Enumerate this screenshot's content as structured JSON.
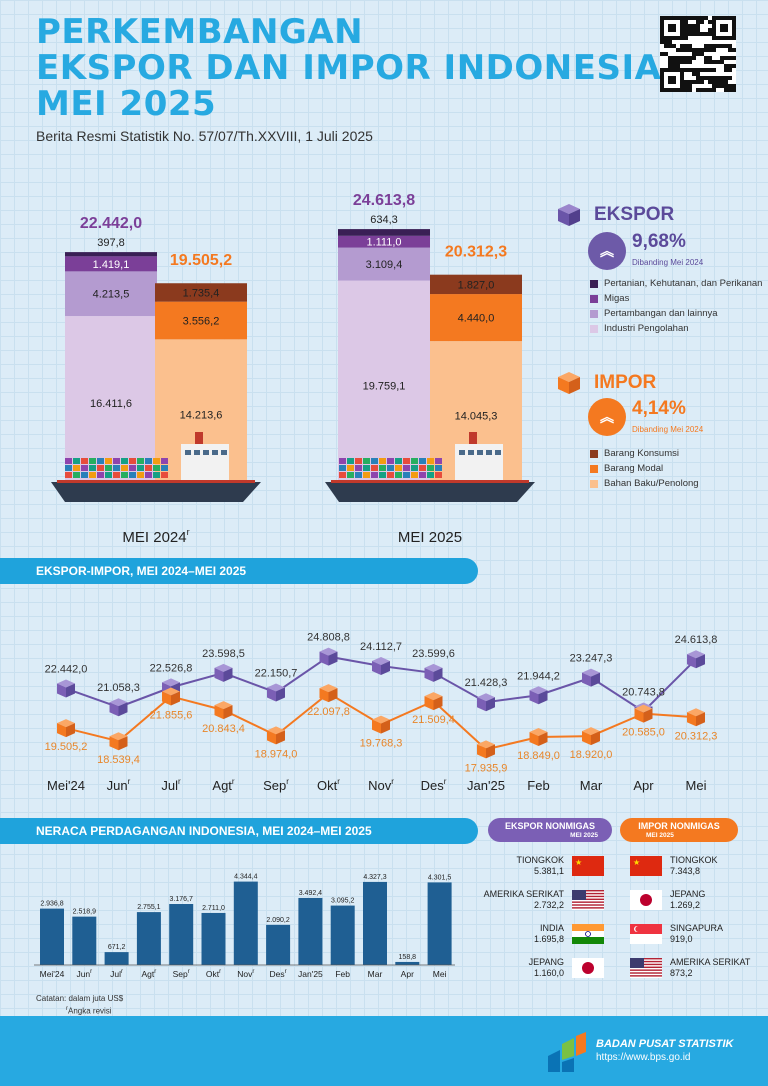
{
  "header": {
    "title_lines": [
      "PERKEMBANGAN",
      "EKSPOR DAN IMPOR INDONESIA",
      "MEI 2025"
    ],
    "subtitle": "Berita Resmi Statistik No. 57/07/Th.XXVIII, 1 Juli 2025"
  },
  "colors": {
    "accent": "#27a9e1",
    "ekspor": "#7b5fb5",
    "impor": "#f47920",
    "bar_blue": "#1f5f93",
    "pertanian": "#3a1f55",
    "migas": "#7b3f98",
    "pertambangan": "#b49bd0",
    "industri": "#dcc8e6",
    "konsumsi": "#8b3a1e",
    "modal": "#f47920",
    "bahan_baku": "#fbc08e"
  },
  "icons": [
    "qr-code-icon",
    "cube-icon",
    "chevrons-up-icon",
    "ship-icon",
    "flag-icon",
    "bps-logo-icon"
  ],
  "chart_data": [
    {
      "type": "bar",
      "stacked": true,
      "categories": [
        "MEI 2024",
        "MEI 2025"
      ],
      "category_superscripts": [
        "r",
        ""
      ],
      "ekspor": {
        "total_labels": [
          "22.442,0",
          "24.613,8"
        ],
        "total": [
          22442.0,
          24613.8
        ],
        "components": [
          {
            "name": "Industri Pengolahan",
            "values": [
              16411.6,
              19759.1
            ],
            "labels": [
              "16.411,6",
              "19.759,1"
            ]
          },
          {
            "name": "Pertambangan dan lainnya",
            "values": [
              4213.5,
              3109.4
            ],
            "labels": [
              "4.213,5",
              "3.109,4"
            ]
          },
          {
            "name": "Migas",
            "values": [
              1419.1,
              1111.0
            ],
            "labels": [
              "1.419,1",
              "1.111,0"
            ]
          },
          {
            "name": "Pertanian, Kehutanan, dan Perikanan",
            "values": [
              397.8,
              634.3
            ],
            "labels": [
              "397,8",
              "634,3"
            ]
          }
        ]
      },
      "impor": {
        "total_labels": [
          "19.505,2",
          "20.312,3"
        ],
        "total": [
          19505.2,
          20312.3
        ],
        "components": [
          {
            "name": "Bahan Baku/Penolong",
            "values": [
              14213.6,
              14045.3
            ],
            "labels": [
              "14.213,6",
              "14.045,3"
            ]
          },
          {
            "name": "Barang Modal",
            "values": [
              3556.2,
              4440.0
            ],
            "labels": [
              "3.556,2",
              "4.440,0"
            ]
          },
          {
            "name": "Barang Konsumsi",
            "values": [
              1735.4,
              1827.0
            ],
            "labels": [
              "1.735,4",
              "1.827,0"
            ]
          }
        ]
      }
    },
    {
      "type": "line",
      "title": "EKSPOR-IMPOR, MEI 2024–MEI 2025",
      "categories": [
        "Mei'24",
        "Jun",
        "Jul",
        "Agt",
        "Sep",
        "Okt",
        "Nov",
        "Des",
        "Jan'25",
        "Feb",
        "Mar",
        "Apr",
        "Mei"
      ],
      "category_superscripts": [
        "",
        "r",
        "r",
        "r",
        "r",
        "r",
        "r",
        "r",
        "",
        "",
        "",
        "",
        ""
      ],
      "series": [
        {
          "name": "Ekspor",
          "values": [
            22442.0,
            21058.3,
            22526.8,
            23598.5,
            22150.7,
            24808.8,
            24112.7,
            23599.6,
            21428.3,
            21944.2,
            23247.3,
            20743.8,
            24613.8
          ],
          "labels": [
            "22.442,0",
            "21.058,3",
            "22.526,8",
            "23.598,5",
            "22.150,7",
            "24.808,8",
            "24.112,7",
            "23.599,6",
            "21.428,3",
            "21.944,2",
            "23.247,3",
            "20.743,8",
            "24.613,8"
          ]
        },
        {
          "name": "Impor",
          "values": [
            19505.2,
            18539.4,
            21855.6,
            20843.4,
            18974.0,
            22097.8,
            19768.3,
            21509.4,
            17935.9,
            18849.0,
            18920.0,
            20585.0,
            20312.3
          ],
          "labels": [
            "19.505,2",
            "18.539,4",
            "21.855,6",
            "20.843,4",
            "18.974,0",
            "22.097,8",
            "19.768,3",
            "21.509,4",
            "17.935,9",
            "18.849,0",
            "18.920,0",
            "20.585,0",
            "20.312,3"
          ]
        }
      ]
    },
    {
      "type": "bar",
      "title": "NERACA PERDAGANGAN INDONESIA, MEI 2024–MEI 2025",
      "categories": [
        "Mei'24",
        "Jun",
        "Jul",
        "Agt",
        "Sep",
        "Okt",
        "Nov",
        "Des",
        "Jan'25",
        "Feb",
        "Mar",
        "Apr",
        "Mei"
      ],
      "category_superscripts": [
        "",
        "r",
        "r",
        "r",
        "r",
        "r",
        "r",
        "r",
        "",
        "",
        "",
        "",
        ""
      ],
      "values": [
        2936.8,
        2518.9,
        671.2,
        2755.1,
        3176.7,
        2711.0,
        4344.4,
        2090.2,
        3492.4,
        3095.2,
        4327.3,
        158.8,
        4301.5
      ],
      "labels": [
        "2.936,8",
        "2.518,9",
        "671,2",
        "2.755,1",
        "3.176,7",
        "2.711,0",
        "4.344,4",
        "2.090,2",
        "3.492,4",
        "3.095,2",
        "4.327,3",
        "158,8",
        "4.301,5"
      ]
    }
  ],
  "summary": {
    "ekspor": {
      "label": "EKSPOR",
      "pct": "9,68%",
      "note": "Dibanding Mei 2024"
    },
    "impor": {
      "label": "IMPOR",
      "pct": "4,14%",
      "note": "Dibanding Mei 2024"
    }
  },
  "legend_ekspor": [
    "Pertanian, Kehutanan, dan Perikanan",
    "Migas",
    "Pertambangan dan lainnya",
    "Industri Pengolahan"
  ],
  "legend_impor": [
    "Barang Konsumsi",
    "Barang Modal",
    "Bahan Baku/Penolong"
  ],
  "partners": {
    "ekspor_title": [
      "EKSPOR NONMIGAS",
      "MEI 2025"
    ],
    "impor_title": [
      "IMPOR NONMIGAS",
      "MEI 2025"
    ],
    "ekspor": [
      {
        "country": "TIONGKOK",
        "value": "5.381,1",
        "flag": "china"
      },
      {
        "country": "AMERIKA SERIKAT",
        "value": "2.732,2",
        "flag": "usa"
      },
      {
        "country": "INDIA",
        "value": "1.695,8",
        "flag": "india"
      },
      {
        "country": "JEPANG",
        "value": "1.160,0",
        "flag": "japan"
      }
    ],
    "impor": [
      {
        "country": "TIONGKOK",
        "value": "7.343,8",
        "flag": "china"
      },
      {
        "country": "JEPANG",
        "value": "1.269,2",
        "flag": "japan"
      },
      {
        "country": "SINGAPURA",
        "value": "919,0",
        "flag": "singapore"
      },
      {
        "country": "AMERIKA SERIKAT",
        "value": "873,2",
        "flag": "usa"
      }
    ]
  },
  "notes": {
    "line1": "Catatan: dalam juta US$",
    "line2_sup": "r",
    "line2": "Angka revisi"
  },
  "footer": {
    "org": "BADAN PUSAT STATISTIK",
    "url": "https://www.bps.go.id"
  }
}
